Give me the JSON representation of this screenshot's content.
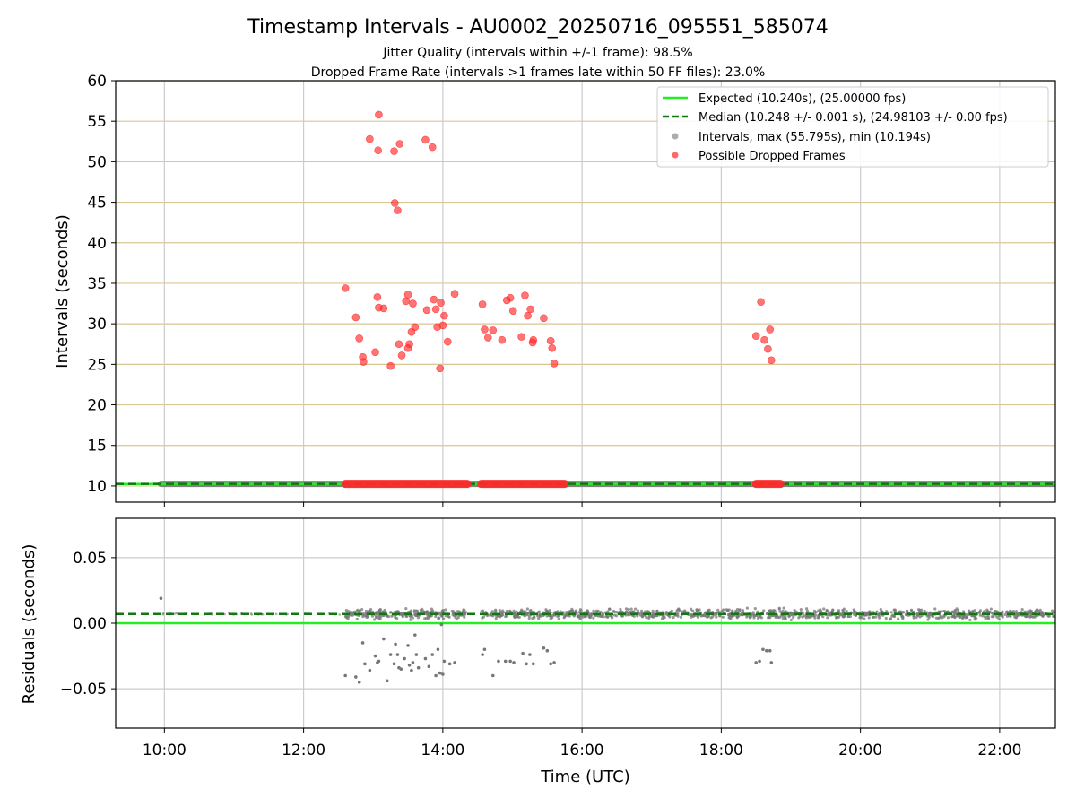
{
  "chart_data": [
    {
      "type": "scatter",
      "title": "Timestamp Intervals - AU0002_20250716_095551_585074",
      "subtitle_lines": [
        "Jitter Quality (intervals within +/-1 frame): 98.5%",
        "Dropped Frame Rate (intervals >1 frames late within 50 FF files): 23.0%"
      ],
      "xlabel": "",
      "ylabel": "Intervals (seconds)",
      "xlim_hours": [
        9.3,
        22.8
      ],
      "ylim": [
        8,
        60
      ],
      "yticks": [
        10,
        15,
        20,
        25,
        30,
        35,
        40,
        45,
        50,
        55,
        60
      ],
      "grid": "on",
      "legend_placement": "top-right",
      "legend": [
        "Expected (10.240s), (25.00000 fps)",
        "Median (10.248 +/- 0.001 s), (24.98103 +/- 0.00 fps)",
        "Intervals, max (55.795s), min (10.194s)",
        "Possible Dropped Frames"
      ],
      "expected_interval": 10.24,
      "median_interval": 10.248,
      "colors": {
        "expected": "#22ee22",
        "median": "#117711",
        "intervals": "#777777",
        "dropped": "#ff2a2a",
        "hgrid": "#d9c690",
        "vgrid": "#cccccc"
      },
      "intervals_normal_hour_ranges": [
        [
          9.95,
          22.8
        ]
      ],
      "dropped_dense_bands_hours": [
        [
          12.6,
          14.35
        ],
        [
          14.55,
          15.75
        ],
        [
          18.5,
          18.85
        ]
      ],
      "dropped_points": [
        [
          12.6,
          34.4
        ],
        [
          12.75,
          30.8
        ],
        [
          12.8,
          28.2
        ],
        [
          12.85,
          25.9
        ],
        [
          12.86,
          25.3
        ],
        [
          12.95,
          52.8
        ],
        [
          13.03,
          26.5
        ],
        [
          13.06,
          33.3
        ],
        [
          13.07,
          51.4
        ],
        [
          13.08,
          32.0
        ],
        [
          13.15,
          31.9
        ],
        [
          13.25,
          24.8
        ],
        [
          13.3,
          51.3
        ],
        [
          13.31,
          44.9
        ],
        [
          13.35,
          44.0
        ],
        [
          13.37,
          27.5
        ],
        [
          13.38,
          52.2
        ],
        [
          13.41,
          26.1
        ],
        [
          13.47,
          32.8
        ],
        [
          13.5,
          33.6
        ],
        [
          13.5,
          27.0
        ],
        [
          13.52,
          27.5
        ],
        [
          13.55,
          29.0
        ],
        [
          13.57,
          32.5
        ],
        [
          13.6,
          29.6
        ],
        [
          13.08,
          55.8
        ],
        [
          13.75,
          52.7
        ],
        [
          13.77,
          31.7
        ],
        [
          13.85,
          51.8
        ],
        [
          13.87,
          33.0
        ],
        [
          13.9,
          31.8
        ],
        [
          13.92,
          29.6
        ],
        [
          13.96,
          24.5
        ],
        [
          13.97,
          32.6
        ],
        [
          14.0,
          29.8
        ],
        [
          14.02,
          31.0
        ],
        [
          14.07,
          27.8
        ],
        [
          14.17,
          33.7
        ],
        [
          14.57,
          32.4
        ],
        [
          14.6,
          29.3
        ],
        [
          14.65,
          28.3
        ],
        [
          14.72,
          29.2
        ],
        [
          14.85,
          28.0
        ],
        [
          14.92,
          32.9
        ],
        [
          14.97,
          33.2
        ],
        [
          15.01,
          31.6
        ],
        [
          15.13,
          28.4
        ],
        [
          15.18,
          33.5
        ],
        [
          15.22,
          31.0
        ],
        [
          15.26,
          31.8
        ],
        [
          15.29,
          27.7
        ],
        [
          15.3,
          28.0
        ],
        [
          15.45,
          30.7
        ],
        [
          15.55,
          27.9
        ],
        [
          15.57,
          27.0
        ],
        [
          15.6,
          25.1
        ],
        [
          18.5,
          28.5
        ],
        [
          18.57,
          32.7
        ],
        [
          18.62,
          28.0
        ],
        [
          18.67,
          26.9
        ],
        [
          18.7,
          29.3
        ],
        [
          18.72,
          25.5
        ]
      ]
    },
    {
      "type": "scatter",
      "title": "",
      "xlabel": "Time (UTC)",
      "ylabel": "Residuals (seconds)",
      "xlim_hours": [
        9.3,
        22.8
      ],
      "ylim": [
        -0.08,
        0.08
      ],
      "yticks": [
        0.05,
        0.0,
        -0.05
      ],
      "ytick_labels": [
        "0.05",
        "0.00",
        "−0.05"
      ],
      "xticks_hours": [
        10,
        12,
        14,
        16,
        18,
        20,
        22
      ],
      "xtick_labels": [
        "10:00",
        "12:00",
        "14:00",
        "16:00",
        "18:00",
        "20:00",
        "22:00"
      ],
      "grid": "on",
      "expected_residual": 0.0,
      "median_residual": 0.007,
      "outlier_points": [
        [
          9.95,
          0.019
        ],
        [
          12.6,
          -0.04
        ],
        [
          12.75,
          -0.041
        ],
        [
          12.8,
          -0.045
        ],
        [
          12.85,
          -0.015
        ],
        [
          12.88,
          -0.031
        ],
        [
          12.95,
          -0.036
        ],
        [
          13.03,
          -0.025
        ],
        [
          13.06,
          -0.03
        ],
        [
          13.08,
          -0.029
        ],
        [
          13.15,
          -0.012
        ],
        [
          13.2,
          -0.044
        ],
        [
          13.25,
          -0.024
        ],
        [
          13.3,
          -0.031
        ],
        [
          13.32,
          -0.016
        ],
        [
          13.35,
          -0.024
        ],
        [
          13.37,
          -0.034
        ],
        [
          13.4,
          -0.035
        ],
        [
          13.45,
          -0.027
        ],
        [
          13.5,
          -0.017
        ],
        [
          13.52,
          -0.032
        ],
        [
          13.55,
          -0.036
        ],
        [
          13.57,
          -0.03
        ],
        [
          13.6,
          -0.009
        ],
        [
          13.62,
          -0.024
        ],
        [
          13.65,
          -0.034
        ],
        [
          13.75,
          -0.027
        ],
        [
          13.8,
          -0.033
        ],
        [
          13.85,
          -0.024
        ],
        [
          13.9,
          -0.04
        ],
        [
          13.93,
          -0.02
        ],
        [
          13.96,
          -0.038
        ],
        [
          13.98,
          -0.001
        ],
        [
          14.0,
          -0.039
        ],
        [
          14.02,
          -0.029
        ],
        [
          14.1,
          -0.031
        ],
        [
          14.17,
          -0.03
        ],
        [
          14.57,
          -0.024
        ],
        [
          14.6,
          -0.02
        ],
        [
          14.72,
          -0.04
        ],
        [
          14.8,
          -0.029
        ],
        [
          14.9,
          -0.029
        ],
        [
          14.97,
          -0.029
        ],
        [
          15.02,
          -0.03
        ],
        [
          15.15,
          -0.023
        ],
        [
          15.2,
          -0.031
        ],
        [
          15.25,
          -0.024
        ],
        [
          15.3,
          -0.031
        ],
        [
          15.45,
          -0.019
        ],
        [
          15.5,
          -0.021
        ],
        [
          15.55,
          -0.031
        ],
        [
          15.6,
          -0.03
        ],
        [
          18.5,
          -0.03
        ],
        [
          18.55,
          -0.029
        ],
        [
          18.6,
          -0.02
        ],
        [
          18.65,
          -0.021
        ],
        [
          18.7,
          -0.021
        ],
        [
          18.72,
          -0.03
        ]
      ]
    }
  ]
}
